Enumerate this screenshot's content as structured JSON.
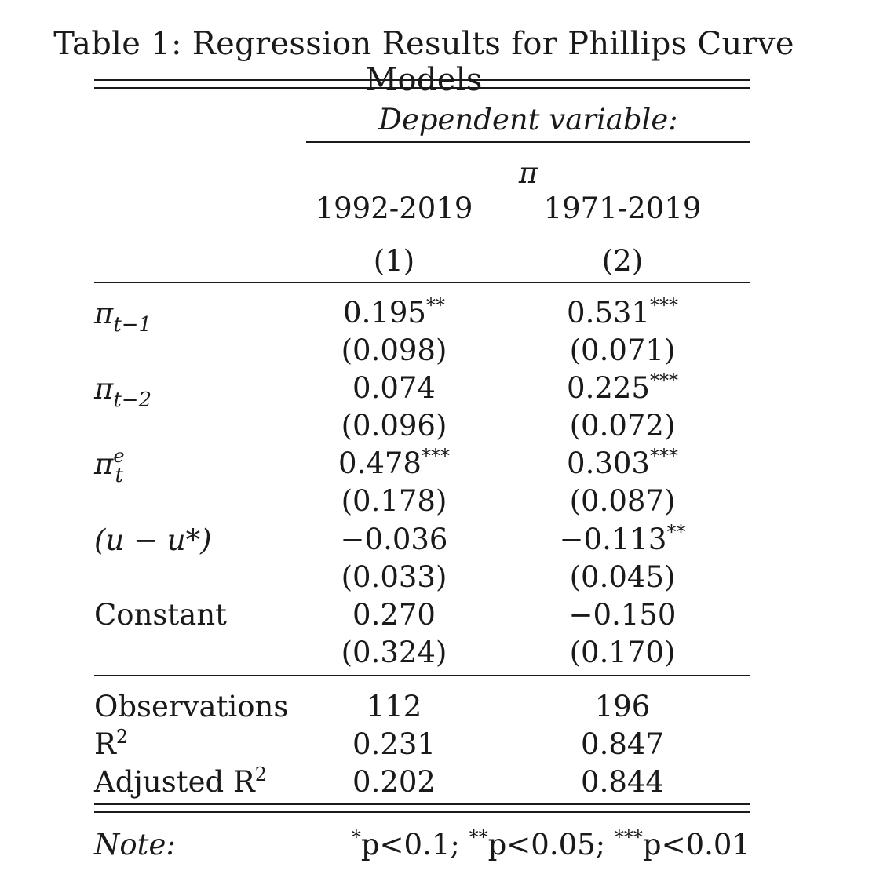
{
  "table": {
    "caption": "Table 1: Regression Results for Phillips Curve Models",
    "dependent_label": "Dependent variable:",
    "dependent_var": "π",
    "columns": [
      {
        "period": "1992-2019",
        "number": "(1)"
      },
      {
        "period": "1971-2019",
        "number": "(2)"
      }
    ],
    "rows": [
      {
        "label_base": "π",
        "label_sub": "t−1",
        "label_sup": "",
        "coef": [
          {
            "value": "0.195",
            "stars": "**"
          },
          {
            "value": "0.531",
            "stars": "***"
          }
        ],
        "se": [
          "(0.098)",
          "(0.071)"
        ]
      },
      {
        "label_base": "π",
        "label_sub": "t−2",
        "label_sup": "",
        "coef": [
          {
            "value": "0.074",
            "stars": ""
          },
          {
            "value": "0.225",
            "stars": "***"
          }
        ],
        "se": [
          "(0.096)",
          "(0.072)"
        ]
      },
      {
        "label_base": "π",
        "label_sub": "t",
        "label_sup": "e",
        "coef": [
          {
            "value": "0.478",
            "stars": "***"
          },
          {
            "value": "0.303",
            "stars": "***"
          }
        ],
        "se": [
          "(0.178)",
          "(0.087)"
        ]
      },
      {
        "label_text": "(u − u*)",
        "coef": [
          {
            "value": "−0.036",
            "stars": ""
          },
          {
            "value": "−0.113",
            "stars": "**"
          }
        ],
        "se": [
          "(0.033)",
          "(0.045)"
        ]
      },
      {
        "label_text": "Constant",
        "coef": [
          {
            "value": "0.270",
            "stars": ""
          },
          {
            "value": "−0.150",
            "stars": ""
          }
        ],
        "se": [
          "(0.324)",
          "(0.170)"
        ]
      }
    ],
    "stats": [
      {
        "label": "Observations",
        "label_sup": "",
        "values": [
          "112",
          "196"
        ]
      },
      {
        "label": "R",
        "label_sup": "2",
        "values": [
          "0.231",
          "0.847"
        ]
      },
      {
        "label": "Adjusted R",
        "label_sup": "2",
        "values": [
          "0.202",
          "0.844"
        ]
      }
    ],
    "note_label": "Note:",
    "note_items": [
      {
        "stars": "*",
        "text": "p<0.1;"
      },
      {
        "stars": "**",
        "text": "p<0.05;"
      },
      {
        "stars": "***",
        "text": "p<0.01"
      }
    ]
  }
}
